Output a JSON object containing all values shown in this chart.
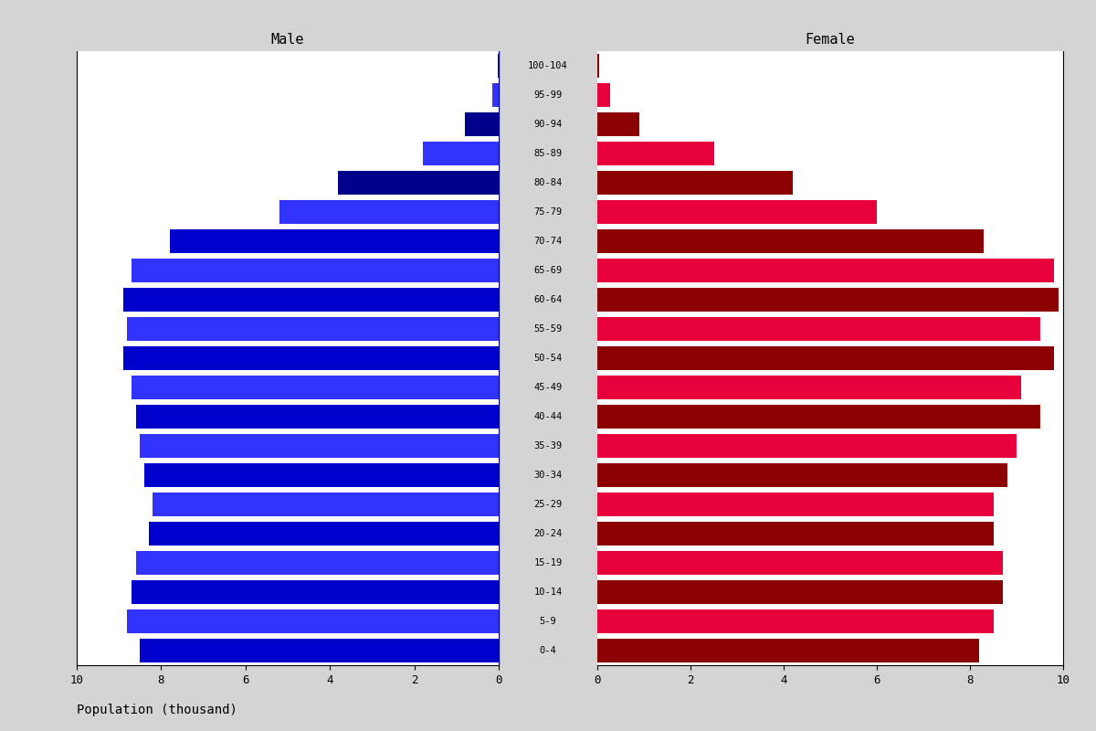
{
  "age_groups": [
    "0-4",
    "5-9",
    "10-14",
    "15-19",
    "20-24",
    "25-29",
    "30-34",
    "35-39",
    "40-44",
    "45-49",
    "50-54",
    "55-59",
    "60-64",
    "65-69",
    "70-74",
    "75-79",
    "80-84",
    "85-89",
    "90-94",
    "95-99",
    "100-104"
  ],
  "male": [
    8.5,
    8.8,
    8.7,
    8.6,
    8.3,
    8.2,
    8.4,
    8.5,
    8.6,
    8.7,
    8.9,
    8.8,
    8.9,
    8.7,
    7.8,
    5.2,
    3.8,
    1.8,
    0.8,
    0.15,
    0.03
  ],
  "female": [
    8.2,
    8.5,
    8.7,
    8.7,
    8.5,
    8.5,
    8.8,
    9.0,
    9.5,
    9.1,
    9.8,
    9.5,
    9.9,
    9.8,
    8.3,
    6.0,
    4.2,
    2.5,
    0.9,
    0.28,
    0.03
  ],
  "male_colors": [
    "#0000cc",
    "#3333ff",
    "#0000cc",
    "#3333ff",
    "#0000cc",
    "#3333ff",
    "#0000cc",
    "#3333ff",
    "#0000cc",
    "#3333ff",
    "#0000cc",
    "#3333ff",
    "#0000cc",
    "#3333ff",
    "#0000cc",
    "#3333ff",
    "#00008b",
    "#3333ff",
    "#00008b",
    "#3333ff",
    "#00008b"
  ],
  "female_colors": [
    "#8b0000",
    "#e8003d",
    "#8b0000",
    "#e8003d",
    "#8b0000",
    "#e8003d",
    "#8b0000",
    "#e8003d",
    "#8b0000",
    "#e8003d",
    "#8b0000",
    "#e8003d",
    "#8b0000",
    "#e8003d",
    "#8b0000",
    "#e8003d",
    "#8b0000",
    "#e8003d",
    "#8b0000",
    "#e8003d",
    "#8b0000"
  ],
  "male_label": "Male",
  "female_label": "Female",
  "xlabel": "Population (thousand)",
  "xlim": 10,
  "bg_color": "#d4d4d4",
  "plot_bg_color": "#ffffff"
}
